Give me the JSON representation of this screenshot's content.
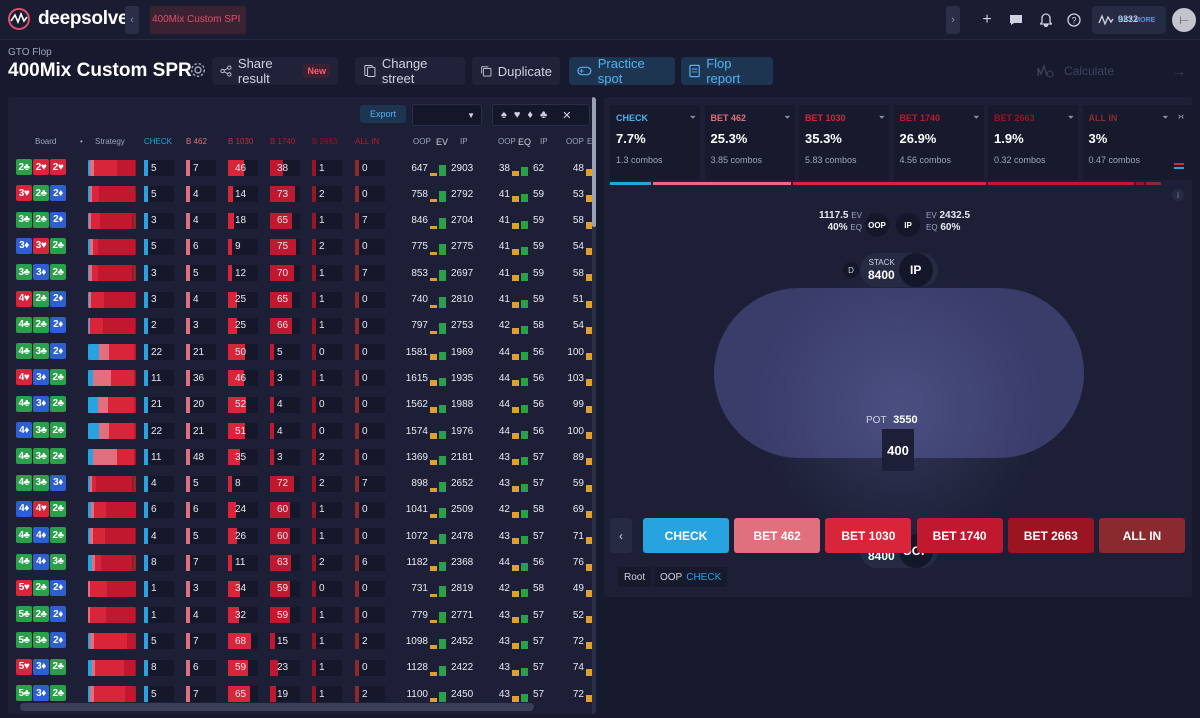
{
  "app": {
    "name": "deepsolver",
    "tab": "400Mix Custom SPI"
  },
  "credits": {
    "amount": "9332",
    "more": "GET MORE"
  },
  "page": {
    "crumb": "GTO Flop",
    "title": "400Mix Custom SPR"
  },
  "actions": {
    "share": "Share result",
    "new_badge": "New",
    "change_street": "Change street",
    "duplicate": "Duplicate",
    "practice": "Practice spot",
    "report": "Flop report",
    "calculate": "Calculate"
  },
  "table_header": {
    "export": "Export",
    "board": "Board",
    "dot": "•",
    "strategy": "Strategy",
    "check": "CHECK",
    "b462": "B 462",
    "b1030": "B 1030",
    "b1740": "B 1740",
    "b2663": "B 2663",
    "allin": "ALL IN",
    "oop": "OOP",
    "ev": "EV",
    "ip": "IP",
    "oop2": "OOP",
    "eq": "EQ",
    "ip2": "IP",
    "oop3": "OOP",
    "e": "E"
  },
  "colors": {
    "check": "#27a3e0",
    "b462": "#e0707e",
    "b1030": "#d8253a",
    "b1740": "#c0182e",
    "b2663": "#9a1422",
    "allin": "#8a2a2e",
    "ev_oop": "#e0a030",
    "ev_ip": "#2aa04a"
  },
  "rows": [
    {
      "cards": [
        [
          "2",
          "♣",
          "c"
        ],
        [
          "2",
          "♥",
          "h"
        ],
        [
          "2",
          "♥",
          "h"
        ]
      ],
      "check": "5",
      "b462": "7",
      "b1030": "46",
      "b1740": "38",
      "b2663": "1",
      "allin": "0",
      "oop_ev": "647",
      "ip_ev": "2903",
      "oop_eq": "38",
      "ip_eq": "62",
      "oop3": "48"
    },
    {
      "cards": [
        [
          "3",
          "♥",
          "h"
        ],
        [
          "2",
          "♣",
          "c"
        ],
        [
          "2",
          "♦",
          "d"
        ]
      ],
      "check": "5",
      "b462": "4",
      "b1030": "14",
      "b1740": "73",
      "b2663": "2",
      "allin": "0",
      "oop_ev": "758",
      "ip_ev": "2792",
      "oop_eq": "41",
      "ip_eq": "59",
      "oop3": "53"
    },
    {
      "cards": [
        [
          "3",
          "♣",
          "c"
        ],
        [
          "2",
          "♣",
          "c"
        ],
        [
          "2",
          "♦",
          "d"
        ]
      ],
      "check": "3",
      "b462": "4",
      "b1030": "18",
      "b1740": "65",
      "b2663": "1",
      "allin": "7",
      "oop_ev": "846",
      "ip_ev": "2704",
      "oop_eq": "41",
      "ip_eq": "59",
      "oop3": "58"
    },
    {
      "cards": [
        [
          "3",
          "♦",
          "d"
        ],
        [
          "3",
          "♥",
          "h"
        ],
        [
          "2",
          "♣",
          "c"
        ]
      ],
      "check": "5",
      "b462": "6",
      "b1030": "9",
      "b1740": "75",
      "b2663": "2",
      "allin": "0",
      "oop_ev": "775",
      "ip_ev": "2775",
      "oop_eq": "41",
      "ip_eq": "59",
      "oop3": "54"
    },
    {
      "cards": [
        [
          "3",
          "♣",
          "c"
        ],
        [
          "3",
          "♦",
          "d"
        ],
        [
          "2",
          "♣",
          "c"
        ]
      ],
      "check": "3",
      "b462": "5",
      "b1030": "12",
      "b1740": "70",
      "b2663": "1",
      "allin": "7",
      "oop_ev": "853",
      "ip_ev": "2697",
      "oop_eq": "41",
      "ip_eq": "59",
      "oop3": "58"
    },
    {
      "cards": [
        [
          "4",
          "♥",
          "h"
        ],
        [
          "2",
          "♣",
          "c"
        ],
        [
          "2",
          "♦",
          "d"
        ]
      ],
      "check": "3",
      "b462": "4",
      "b1030": "25",
      "b1740": "65",
      "b2663": "1",
      "allin": "0",
      "oop_ev": "740",
      "ip_ev": "2810",
      "oop_eq": "41",
      "ip_eq": "59",
      "oop3": "51"
    },
    {
      "cards": [
        [
          "4",
          "♣",
          "c"
        ],
        [
          "2",
          "♣",
          "c"
        ],
        [
          "2",
          "♦",
          "d"
        ]
      ],
      "check": "2",
      "b462": "3",
      "b1030": "25",
      "b1740": "66",
      "b2663": "1",
      "allin": "0",
      "oop_ev": "797",
      "ip_ev": "2753",
      "oop_eq": "42",
      "ip_eq": "58",
      "oop3": "54"
    },
    {
      "cards": [
        [
          "4",
          "♣",
          "c"
        ],
        [
          "3",
          "♣",
          "c"
        ],
        [
          "2",
          "♦",
          "d"
        ]
      ],
      "check": "22",
      "b462": "21",
      "b1030": "50",
      "b1740": "5",
      "b2663": "0",
      "allin": "0",
      "oop_ev": "1581",
      "ip_ev": "1969",
      "oop_eq": "44",
      "ip_eq": "56",
      "oop3": "100"
    },
    {
      "cards": [
        [
          "4",
          "♥",
          "h"
        ],
        [
          "3",
          "♦",
          "d"
        ],
        [
          "2",
          "♣",
          "c"
        ]
      ],
      "check": "11",
      "b462": "36",
      "b1030": "46",
      "b1740": "3",
      "b2663": "1",
      "allin": "0",
      "oop_ev": "1615",
      "ip_ev": "1935",
      "oop_eq": "44",
      "ip_eq": "56",
      "oop3": "103"
    },
    {
      "cards": [
        [
          "4",
          "♣",
          "c"
        ],
        [
          "3",
          "♦",
          "d"
        ],
        [
          "2",
          "♣",
          "c"
        ]
      ],
      "check": "21",
      "b462": "20",
      "b1030": "52",
      "b1740": "4",
      "b2663": "0",
      "allin": "0",
      "oop_ev": "1562",
      "ip_ev": "1988",
      "oop_eq": "44",
      "ip_eq": "56",
      "oop3": "99"
    },
    {
      "cards": [
        [
          "4",
          "♦",
          "d"
        ],
        [
          "3",
          "♣",
          "c"
        ],
        [
          "2",
          "♣",
          "c"
        ]
      ],
      "check": "22",
      "b462": "21",
      "b1030": "51",
      "b1740": "4",
      "b2663": "0",
      "allin": "0",
      "oop_ev": "1574",
      "ip_ev": "1976",
      "oop_eq": "44",
      "ip_eq": "56",
      "oop3": "100"
    },
    {
      "cards": [
        [
          "4",
          "♣",
          "c"
        ],
        [
          "3",
          "♣",
          "c"
        ],
        [
          "2",
          "♣",
          "c"
        ]
      ],
      "check": "11",
      "b462": "48",
      "b1030": "35",
      "b1740": "3",
      "b2663": "2",
      "allin": "0",
      "oop_ev": "1369",
      "ip_ev": "2181",
      "oop_eq": "43",
      "ip_eq": "57",
      "oop3": "89"
    },
    {
      "cards": [
        [
          "4",
          "♣",
          "c"
        ],
        [
          "3",
          "♣",
          "c"
        ],
        [
          "3",
          "♦",
          "d"
        ]
      ],
      "check": "4",
      "b462": "5",
      "b1030": "8",
      "b1740": "72",
      "b2663": "2",
      "allin": "7",
      "oop_ev": "898",
      "ip_ev": "2652",
      "oop_eq": "43",
      "ip_eq": "57",
      "oop3": "59"
    },
    {
      "cards": [
        [
          "4",
          "♦",
          "d"
        ],
        [
          "4",
          "♥",
          "h"
        ],
        [
          "2",
          "♣",
          "c"
        ]
      ],
      "check": "6",
      "b462": "6",
      "b1030": "24",
      "b1740": "60",
      "b2663": "1",
      "allin": "0",
      "oop_ev": "1041",
      "ip_ev": "2509",
      "oop_eq": "42",
      "ip_eq": "58",
      "oop3": "69"
    },
    {
      "cards": [
        [
          "4",
          "♣",
          "c"
        ],
        [
          "4",
          "♦",
          "d"
        ],
        [
          "2",
          "♣",
          "c"
        ]
      ],
      "check": "4",
      "b462": "5",
      "b1030": "26",
      "b1740": "60",
      "b2663": "1",
      "allin": "0",
      "oop_ev": "1072",
      "ip_ev": "2478",
      "oop_eq": "43",
      "ip_eq": "57",
      "oop3": "71"
    },
    {
      "cards": [
        [
          "4",
          "♣",
          "c"
        ],
        [
          "4",
          "♦",
          "d"
        ],
        [
          "3",
          "♣",
          "c"
        ]
      ],
      "check": "8",
      "b462": "7",
      "b1030": "11",
      "b1740": "63",
      "b2663": "2",
      "allin": "6",
      "oop_ev": "1182",
      "ip_ev": "2368",
      "oop_eq": "44",
      "ip_eq": "56",
      "oop3": "76"
    },
    {
      "cards": [
        [
          "5",
          "♥",
          "h"
        ],
        [
          "2",
          "♣",
          "c"
        ],
        [
          "2",
          "♦",
          "d"
        ]
      ],
      "check": "1",
      "b462": "3",
      "b1030": "34",
      "b1740": "59",
      "b2663": "0",
      "allin": "0",
      "oop_ev": "731",
      "ip_ev": "2819",
      "oop_eq": "42",
      "ip_eq": "58",
      "oop3": "49"
    },
    {
      "cards": [
        [
          "5",
          "♣",
          "c"
        ],
        [
          "2",
          "♣",
          "c"
        ],
        [
          "2",
          "♦",
          "d"
        ]
      ],
      "check": "1",
      "b462": "4",
      "b1030": "32",
      "b1740": "59",
      "b2663": "1",
      "allin": "0",
      "oop_ev": "779",
      "ip_ev": "2771",
      "oop_eq": "43",
      "ip_eq": "57",
      "oop3": "52"
    },
    {
      "cards": [
        [
          "5",
          "♣",
          "c"
        ],
        [
          "3",
          "♣",
          "c"
        ],
        [
          "2",
          "♦",
          "d"
        ]
      ],
      "check": "5",
      "b462": "7",
      "b1030": "68",
      "b1740": "15",
      "b2663": "1",
      "allin": "2",
      "oop_ev": "1098",
      "ip_ev": "2452",
      "oop_eq": "43",
      "ip_eq": "57",
      "oop3": "72"
    },
    {
      "cards": [
        [
          "5",
          "♥",
          "h"
        ],
        [
          "3",
          "♦",
          "d"
        ],
        [
          "2",
          "♣",
          "c"
        ]
      ],
      "check": "8",
      "b462": "6",
      "b1030": "59",
      "b1740": "23",
      "b2663": "1",
      "allin": "0",
      "oop_ev": "1128",
      "ip_ev": "2422",
      "oop_eq": "43",
      "ip_eq": "57",
      "oop3": "74"
    },
    {
      "cards": [
        [
          "5",
          "♣",
          "c"
        ],
        [
          "3",
          "♦",
          "d"
        ],
        [
          "2",
          "♣",
          "c"
        ]
      ],
      "check": "5",
      "b462": "7",
      "b1030": "65",
      "b1740": "19",
      "b2663": "1",
      "allin": "2",
      "oop_ev": "1100",
      "ip_ev": "2450",
      "oop_eq": "43",
      "ip_eq": "57",
      "oop3": "72"
    }
  ],
  "action_cards": [
    {
      "title": "CHECK",
      "pct": "7.7%",
      "combos": "1.3 combos",
      "color": "#27a3e0",
      "frac": 0.077
    },
    {
      "title": "BET 462",
      "pct": "25.3%",
      "combos": "3.85 combos",
      "color": "#e0707e",
      "frac": 0.253
    },
    {
      "title": "BET 1030",
      "pct": "35.3%",
      "combos": "5.83 combos",
      "color": "#d8253a",
      "frac": 0.353
    },
    {
      "title": "BET 1740",
      "pct": "26.9%",
      "combos": "4.56 combos",
      "color": "#c0182e",
      "frac": 0.269
    },
    {
      "title": "BET 2663",
      "pct": "1.9%",
      "combos": "0.32 combos",
      "color": "#9a1422",
      "frac": 0.019
    },
    {
      "title": "ALL IN",
      "pct": "3%",
      "combos": "0.47 combos",
      "color": "#8a2a2e",
      "frac": 0.03
    }
  ],
  "table": {
    "oop_ev": "1117.5",
    "ev": "EV",
    "oop_eq": "40%",
    "eq": "EQ",
    "oop": "OOP",
    "ip": "IP",
    "ip_ev": "2432.5",
    "ip_eq": "60%",
    "stack_label": "STACK",
    "ip_stack": "8400",
    "oop_stack": "8400",
    "dealer": "D",
    "pot_label": "POT",
    "pot": "3550",
    "board_pot": "400"
  },
  "buttons": [
    {
      "label": "CHECK",
      "color": "#27a3e0"
    },
    {
      "label": "BET 462",
      "color": "#e0707e"
    },
    {
      "label": "BET 1030",
      "color": "#d8253a"
    },
    {
      "label": "BET 1740",
      "color": "#c0182e"
    },
    {
      "label": "BET 2663",
      "color": "#9a1422"
    },
    {
      "label": "ALL IN",
      "color": "#8a2a2e"
    }
  ],
  "path": {
    "root": "Root",
    "oop": "OOP",
    "check": "CHECK"
  }
}
